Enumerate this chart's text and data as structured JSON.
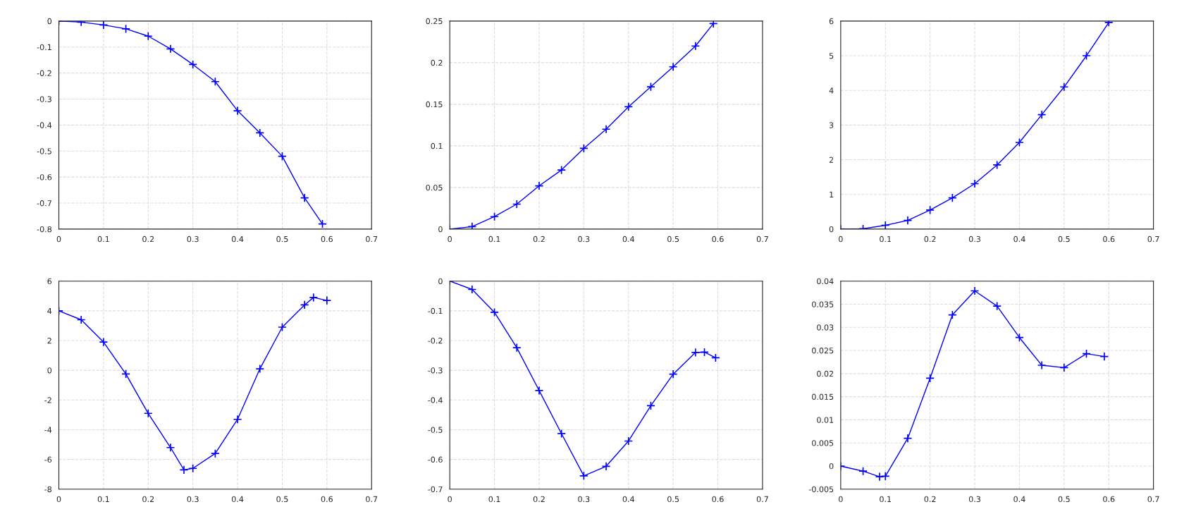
{
  "chart_data": [
    {
      "type": "line",
      "marker": "cross",
      "line_style": "solid",
      "grid": true,
      "xlim": [
        0,
        0.7
      ],
      "xticks": [
        0,
        0.1,
        0.2,
        0.3,
        0.4,
        0.5,
        0.6,
        0.7
      ],
      "ylim": [
        -0.8,
        0
      ],
      "yticks": [
        -0.8,
        -0.7,
        -0.6,
        -0.5,
        -0.4,
        -0.3,
        -0.2,
        -0.1,
        0
      ],
      "series": [
        {
          "color": "#0000ff",
          "x": [
            0,
            0.05,
            0.1,
            0.15,
            0.2,
            0.25,
            0.3,
            0.35,
            0.4,
            0.45,
            0.5,
            0.55,
            0.59
          ],
          "values": [
            0,
            -0.004,
            -0.015,
            -0.03,
            -0.058,
            -0.107,
            -0.167,
            -0.233,
            -0.345,
            -0.43,
            -0.52,
            -0.68,
            -0.78
          ]
        }
      ]
    },
    {
      "type": "line",
      "marker": "cross",
      "line_style": "solid",
      "grid": true,
      "xlim": [
        0,
        0.7
      ],
      "xticks": [
        0,
        0.1,
        0.2,
        0.3,
        0.4,
        0.5,
        0.6,
        0.7
      ],
      "ylim": [
        0,
        0.25
      ],
      "yticks": [
        0,
        0.05,
        0.1,
        0.15,
        0.2,
        0.25
      ],
      "series": [
        {
          "color": "#0000ff",
          "x": [
            0,
            0.05,
            0.1,
            0.15,
            0.2,
            0.25,
            0.3,
            0.35,
            0.4,
            0.45,
            0.5,
            0.55,
            0.59
          ],
          "values": [
            0,
            0.003,
            0.015,
            0.03,
            0.052,
            0.071,
            0.097,
            0.12,
            0.147,
            0.171,
            0.195,
            0.22,
            0.247
          ]
        }
      ]
    },
    {
      "type": "line",
      "marker": "cross",
      "line_style": "solid",
      "grid": true,
      "xlim": [
        0,
        0.7
      ],
      "xticks": [
        0,
        0.1,
        0.2,
        0.3,
        0.4,
        0.5,
        0.6,
        0.7
      ],
      "ylim": [
        0,
        6
      ],
      "yticks": [
        0,
        1,
        2,
        3,
        4,
        5,
        6
      ],
      "series": [
        {
          "color": "#0000ff",
          "x": [
            0,
            0.05,
            0.1,
            0.15,
            0.2,
            0.25,
            0.3,
            0.35,
            0.4,
            0.45,
            0.5,
            0.55,
            0.6
          ],
          "values": [
            0,
            0.01,
            0.11,
            0.25,
            0.55,
            0.9,
            1.31,
            1.85,
            2.5,
            3.3,
            4.1,
            5.0,
            5.96
          ]
        }
      ]
    },
    {
      "type": "line",
      "marker": "cross",
      "line_style": "solid",
      "grid": true,
      "xlim": [
        0,
        0.7
      ],
      "xticks": [
        0,
        0.1,
        0.2,
        0.3,
        0.4,
        0.5,
        0.6,
        0.7
      ],
      "ylim": [
        -8,
        6
      ],
      "yticks": [
        -8,
        -6,
        -4,
        -2,
        0,
        2,
        4,
        6
      ],
      "series": [
        {
          "color": "#0000ff",
          "x": [
            0,
            0.05,
            0.1,
            0.15,
            0.2,
            0.25,
            0.28,
            0.3,
            0.35,
            0.4,
            0.45,
            0.5,
            0.55,
            0.57,
            0.6
          ],
          "values": [
            4.0,
            3.4,
            1.9,
            -0.25,
            -2.9,
            -5.2,
            -6.7,
            -6.6,
            -5.6,
            -3.3,
            0.1,
            2.9,
            4.4,
            4.9,
            4.7
          ]
        }
      ]
    },
    {
      "type": "line",
      "marker": "cross",
      "line_style": "solid",
      "grid": true,
      "xlim": [
        0,
        0.7
      ],
      "xticks": [
        0,
        0.1,
        0.2,
        0.3,
        0.4,
        0.5,
        0.6,
        0.7
      ],
      "ylim": [
        -0.7,
        0
      ],
      "yticks": [
        -0.7,
        -0.6,
        -0.5,
        -0.4,
        -0.3,
        -0.2,
        -0.1,
        0
      ],
      "series": [
        {
          "color": "#0000ff",
          "x": [
            0,
            0.05,
            0.1,
            0.15,
            0.2,
            0.25,
            0.3,
            0.35,
            0.4,
            0.45,
            0.5,
            0.55,
            0.57,
            0.595
          ],
          "values": [
            0,
            -0.028,
            -0.105,
            -0.224,
            -0.368,
            -0.513,
            -0.655,
            -0.623,
            -0.538,
            -0.419,
            -0.313,
            -0.24,
            -0.239,
            -0.258
          ]
        }
      ]
    },
    {
      "type": "line",
      "marker": "cross",
      "line_style": "solid",
      "grid": true,
      "xlim": [
        0,
        0.7
      ],
      "xticks": [
        0,
        0.1,
        0.2,
        0.3,
        0.4,
        0.5,
        0.6,
        0.7
      ],
      "ylim": [
        -0.005,
        0.04
      ],
      "yticks": [
        -0.005,
        0,
        0.005,
        0.01,
        0.015,
        0.02,
        0.025,
        0.03,
        0.035,
        0.04
      ],
      "series": [
        {
          "color": "#0000ff",
          "x": [
            0,
            0.05,
            0.087,
            0.1,
            0.15,
            0.2,
            0.25,
            0.3,
            0.35,
            0.4,
            0.45,
            0.5,
            0.55,
            0.59
          ],
          "values": [
            0,
            -0.0011,
            -0.0023,
            -0.0022,
            0.006,
            0.019,
            0.0327,
            0.0379,
            0.0346,
            0.0278,
            0.0218,
            0.0213,
            0.0243,
            0.0237
          ]
        }
      ]
    }
  ]
}
